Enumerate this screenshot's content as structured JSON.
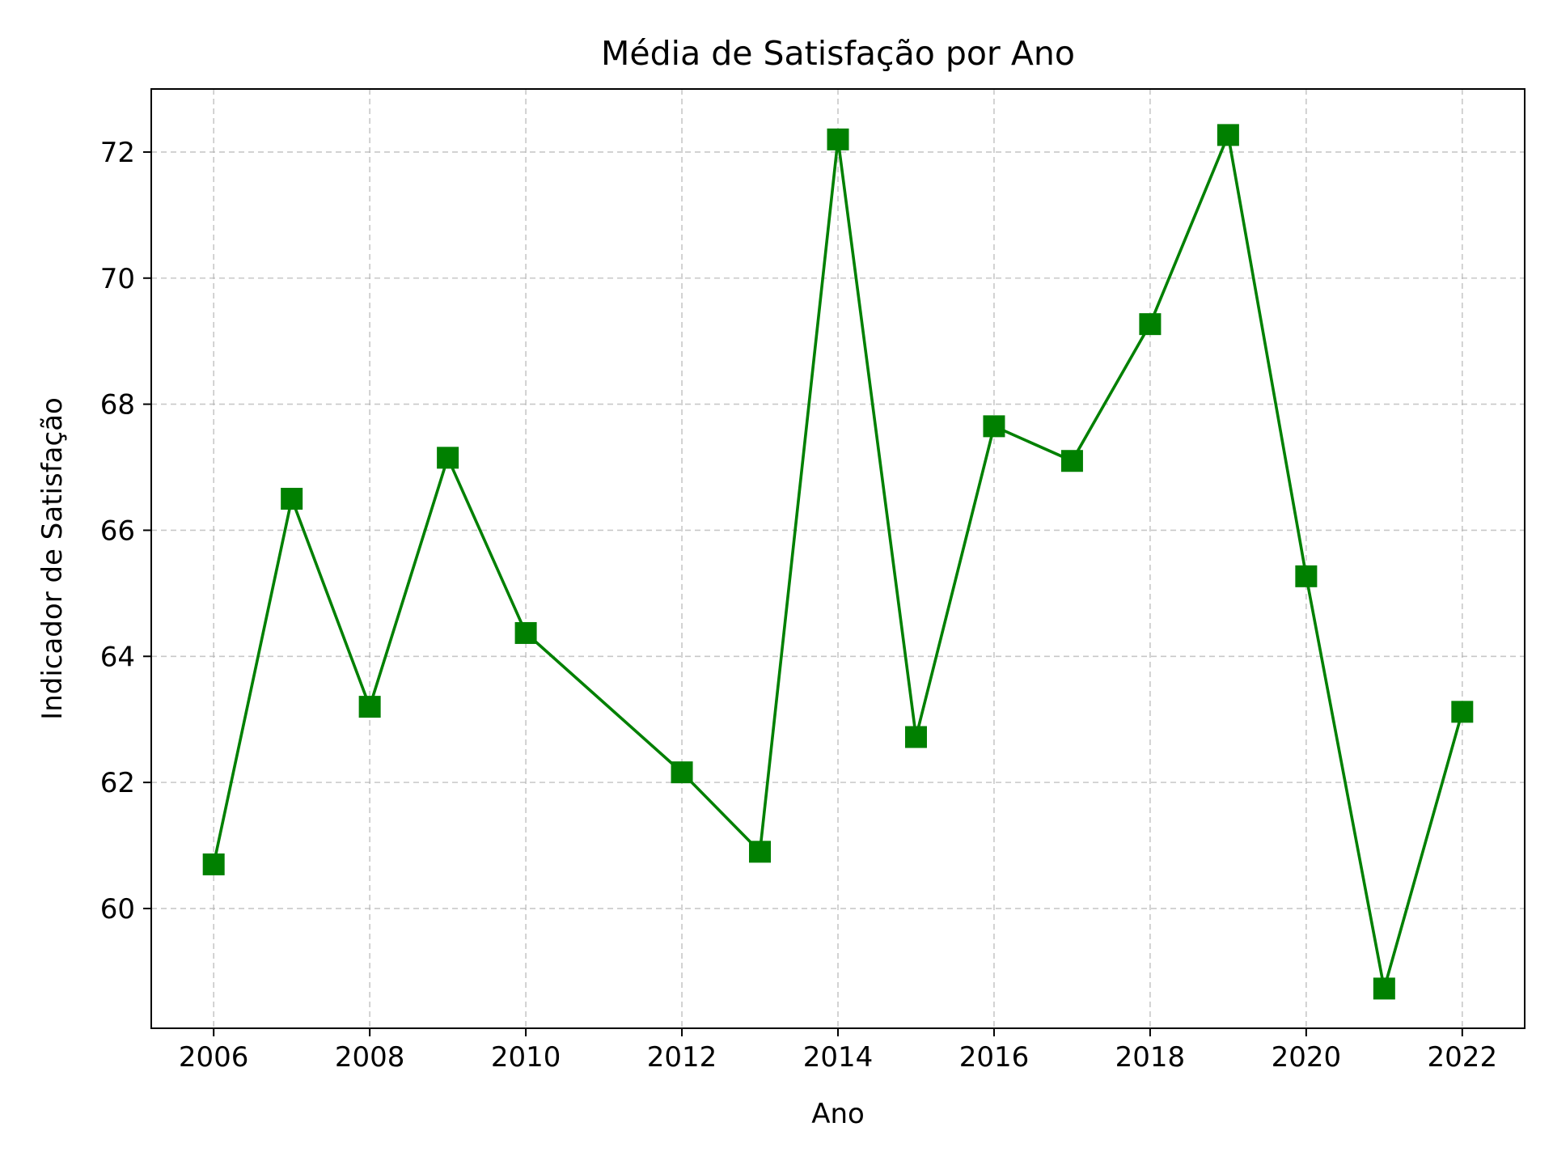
{
  "chart_data": {
    "type": "line",
    "title": "Média de Satisfação por Ano",
    "xlabel": "Ano",
    "ylabel": "Indicador de Satisfação",
    "xlim": [
      2005.2,
      2022.8
    ],
    "ylim": [
      58.1,
      73.0
    ],
    "xticks": [
      2006,
      2008,
      2010,
      2012,
      2014,
      2016,
      2018,
      2020,
      2022
    ],
    "yticks": [
      60,
      62,
      64,
      66,
      68,
      70,
      72
    ],
    "grid": true,
    "grid_style": "dashed",
    "legend": false,
    "line_color": "#008000",
    "marker": "square",
    "series": [
      {
        "x": [
          2006,
          2007,
          2008,
          2009,
          2010,
          2012,
          2013,
          2014,
          2015,
          2016,
          2017,
          2018,
          2019,
          2020,
          2021,
          2022
        ],
        "y": [
          60.7,
          66.5,
          63.2,
          67.15,
          64.37,
          62.16,
          60.9,
          72.2,
          62.72,
          67.65,
          67.1,
          69.27,
          72.27,
          65.27,
          58.73,
          63.12
        ]
      }
    ]
  }
}
